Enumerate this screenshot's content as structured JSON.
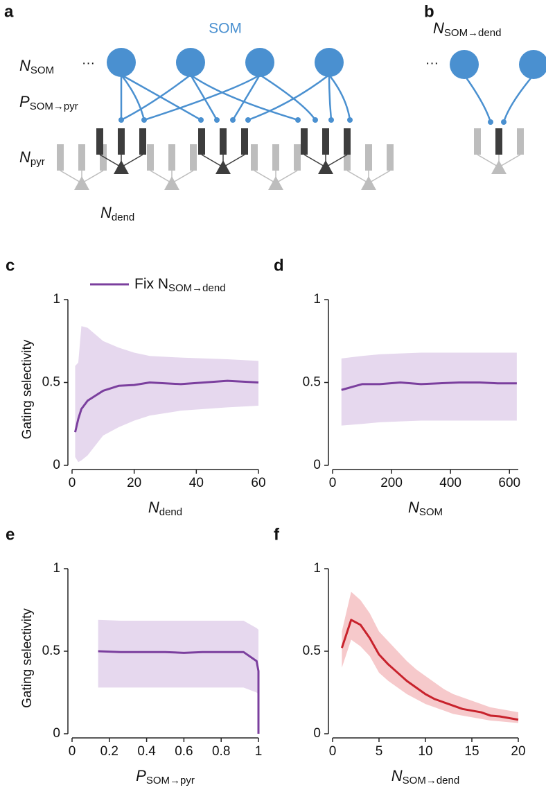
{
  "diagram_a": {
    "panel": "a",
    "population_label": "SOM",
    "ellipsis": "···",
    "n_som": {
      "main": "N",
      "sub": "SOM"
    },
    "p_som_pyr": {
      "main": "P",
      "sub": "SOM→pyr"
    },
    "n_pyr": {
      "main": "N",
      "sub": "pyr"
    },
    "n_dend": {
      "main": "N",
      "sub": "dend"
    }
  },
  "diagram_b": {
    "panel": "b",
    "ellipsis": "···",
    "n_som_dend": {
      "main": "N",
      "sub": "SOM→dend"
    }
  },
  "chart_data": [
    {
      "type": "line",
      "panel": "c",
      "ylabel": "Gating selectivity",
      "xlabel": {
        "main": "N",
        "sub": "dend"
      },
      "xlim": [
        0,
        60
      ],
      "xticks": [
        0,
        20,
        40,
        60
      ],
      "ylim": [
        0,
        1
      ],
      "yticks": [
        0,
        0.5,
        1
      ],
      "x": [
        1,
        2,
        3,
        5,
        10,
        15,
        20,
        25,
        35,
        50,
        60
      ],
      "series": [
        {
          "name": "Fix N",
          "name_sub": "SOM→dend",
          "color": "#7b3f9e",
          "band_color": "#e6d8ee",
          "values": [
            0.2,
            0.28,
            0.34,
            0.39,
            0.45,
            0.48,
            0.485,
            0.5,
            0.49,
            0.51,
            0.5
          ],
          "lower": [
            0.05,
            0.02,
            0.03,
            0.06,
            0.18,
            0.23,
            0.27,
            0.3,
            0.33,
            0.35,
            0.36
          ],
          "upper": [
            0.6,
            0.62,
            0.84,
            0.83,
            0.75,
            0.71,
            0.68,
            0.66,
            0.65,
            0.64,
            0.63
          ]
        }
      ]
    },
    {
      "type": "line",
      "panel": "d",
      "xlabel": {
        "main": "N",
        "sub": "SOM"
      },
      "xlim": [
        0,
        630
      ],
      "xticks": [
        0,
        200,
        400,
        600
      ],
      "ylim": [
        0,
        1
      ],
      "yticks": [
        0,
        0.5,
        1
      ],
      "x": [
        30,
        100,
        160,
        230,
        300,
        360,
        430,
        500,
        560,
        625
      ],
      "series": [
        {
          "color": "#7b3f9e",
          "band_color": "#e6d8ee",
          "values": [
            0.455,
            0.49,
            0.49,
            0.5,
            0.49,
            0.495,
            0.5,
            0.5,
            0.495,
            0.495
          ],
          "lower": [
            0.24,
            0.25,
            0.26,
            0.265,
            0.27,
            0.27,
            0.27,
            0.27,
            0.27,
            0.27
          ],
          "upper": [
            0.645,
            0.66,
            0.67,
            0.675,
            0.68,
            0.68,
            0.68,
            0.68,
            0.68,
            0.68
          ]
        }
      ]
    },
    {
      "type": "line",
      "panel": "e",
      "ylabel": "Gating selectivity",
      "xlabel": {
        "main": "P",
        "sub": "SOM→pyr"
      },
      "xlim": [
        0,
        1
      ],
      "xticks": [
        0,
        0.2,
        0.4,
        0.6,
        0.8,
        1
      ],
      "ylim": [
        0,
        1
      ],
      "yticks": [
        0,
        0.5,
        1
      ],
      "x": [
        0.14,
        0.26,
        0.4,
        0.5,
        0.6,
        0.7,
        0.8,
        0.92,
        0.99,
        1,
        1
      ],
      "series": [
        {
          "color": "#7b3f9e",
          "band_color": "#e6d8ee",
          "values": [
            0.5,
            0.495,
            0.495,
            0.495,
            0.49,
            0.495,
            0.495,
            0.495,
            0.44,
            0.38,
            0
          ],
          "lower": [
            0.28,
            0.28,
            0.28,
            0.28,
            0.28,
            0.28,
            0.28,
            0.28,
            0.25,
            0.24,
            0
          ],
          "upper": [
            0.69,
            0.685,
            0.685,
            0.685,
            0.685,
            0.685,
            0.685,
            0.685,
            0.64,
            0.63,
            0
          ]
        }
      ]
    },
    {
      "type": "line",
      "panel": "f",
      "xlabel": {
        "main": "N",
        "sub": "SOM→dend"
      },
      "xlim": [
        0,
        20
      ],
      "xticks": [
        0,
        5,
        10,
        15,
        20
      ],
      "ylim": [
        0,
        1
      ],
      "yticks": [
        0,
        0.5,
        1
      ],
      "x": [
        1,
        2,
        3,
        4,
        5,
        6,
        7,
        8,
        9,
        10,
        11,
        12,
        13,
        14,
        15,
        16,
        17,
        18,
        19,
        20
      ],
      "series": [
        {
          "color": "#c8222c",
          "band_color": "#f6c9cb",
          "values": [
            0.52,
            0.69,
            0.66,
            0.58,
            0.48,
            0.42,
            0.37,
            0.32,
            0.28,
            0.24,
            0.21,
            0.19,
            0.17,
            0.15,
            0.14,
            0.13,
            0.11,
            0.105,
            0.095,
            0.085
          ],
          "lower": [
            0.4,
            0.57,
            0.53,
            0.47,
            0.37,
            0.32,
            0.28,
            0.24,
            0.21,
            0.18,
            0.16,
            0.14,
            0.12,
            0.11,
            0.1,
            0.09,
            0.08,
            0.075,
            0.07,
            0.065
          ],
          "upper": [
            0.62,
            0.86,
            0.81,
            0.73,
            0.62,
            0.56,
            0.5,
            0.44,
            0.39,
            0.35,
            0.31,
            0.27,
            0.24,
            0.22,
            0.2,
            0.18,
            0.16,
            0.15,
            0.14,
            0.13
          ]
        }
      ]
    }
  ]
}
